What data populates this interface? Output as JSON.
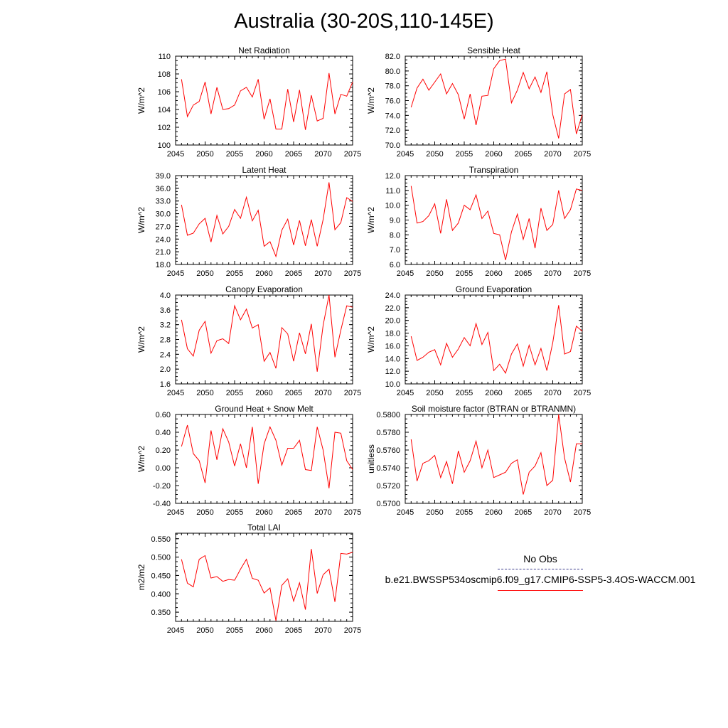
{
  "title": "Australia (30-20S,110-145E)",
  "legend": {
    "obs_label": "No Obs",
    "obs_color": "#3c3c8c",
    "run_label": "b.e21.BWSSP534oscmip6.f09_g17.CMIP6-SSP5-3.4OS-WACCM.001",
    "run_color": "#ff0000"
  },
  "chart_data": [
    {
      "type": "line",
      "title": "Net Radiation",
      "ylabel": "W/m^2",
      "xlim": [
        2045,
        2075
      ],
      "ylim": [
        100,
        110
      ],
      "xticks": [
        "2045",
        "2050",
        "2055",
        "2060",
        "2065",
        "2070",
        "2075"
      ],
      "yticks": [
        "100",
        "102",
        "104",
        "106",
        "108",
        "110"
      ],
      "x": [
        2046,
        2047,
        2048,
        2049,
        2050,
        2051,
        2052,
        2053,
        2054,
        2055,
        2056,
        2057,
        2058,
        2059,
        2060,
        2061,
        2062,
        2063,
        2064,
        2065,
        2066,
        2067,
        2068,
        2069,
        2070,
        2071,
        2072,
        2073,
        2074,
        2075
      ],
      "series": [
        {
          "values": [
            107.4,
            103.2,
            104.5,
            104.9,
            107.1,
            103.5,
            106.5,
            104.0,
            104.1,
            104.5,
            106.1,
            106.5,
            105.4,
            107.4,
            102.9,
            105.2,
            101.8,
            101.8,
            106.3,
            102.6,
            106.2,
            101.7,
            105.6,
            102.7,
            103.0,
            108.1,
            103.5,
            105.7,
            105.5,
            107.1
          ]
        }
      ]
    },
    {
      "type": "line",
      "title": "Sensible Heat",
      "ylabel": "W/m^2",
      "xlim": [
        2045,
        2075
      ],
      "ylim": [
        70.0,
        82.0
      ],
      "xticks": [
        "2045",
        "2050",
        "2055",
        "2060",
        "2065",
        "2070",
        "2075"
      ],
      "yticks": [
        "70.0",
        "72.0",
        "74.0",
        "76.0",
        "78.0",
        "80.0",
        "82.0"
      ],
      "x": [
        2046,
        2047,
        2048,
        2049,
        2050,
        2051,
        2052,
        2053,
        2054,
        2055,
        2056,
        2057,
        2058,
        2059,
        2060,
        2061,
        2062,
        2063,
        2064,
        2065,
        2066,
        2067,
        2068,
        2069,
        2070,
        2071,
        2072,
        2073,
        2074,
        2075
      ],
      "series": [
        {
          "values": [
            75.1,
            77.7,
            78.9,
            77.4,
            78.5,
            79.6,
            76.9,
            78.3,
            76.8,
            73.5,
            76.9,
            72.7,
            76.6,
            76.7,
            80.3,
            81.4,
            81.6,
            75.7,
            77.4,
            79.8,
            77.6,
            79.2,
            77.1,
            79.9,
            74.1,
            70.9,
            76.9,
            77.5,
            71.5,
            74.1
          ]
        }
      ]
    },
    {
      "type": "line",
      "title": "Latent Heat",
      "ylabel": "W/m^2",
      "xlim": [
        2045,
        2075
      ],
      "ylim": [
        18.0,
        39.0
      ],
      "xticks": [
        "2045",
        "2050",
        "2055",
        "2060",
        "2065",
        "2070",
        "2075"
      ],
      "yticks": [
        "18.0",
        "21.0",
        "24.0",
        "27.0",
        "30.0",
        "33.0",
        "36.0",
        "39.0"
      ],
      "x": [
        2046,
        2047,
        2048,
        2049,
        2050,
        2051,
        2052,
        2053,
        2054,
        2055,
        2056,
        2057,
        2058,
        2059,
        2060,
        2061,
        2062,
        2063,
        2064,
        2065,
        2066,
        2067,
        2068,
        2069,
        2070,
        2071,
        2072,
        2073,
        2074,
        2075
      ],
      "series": [
        {
          "values": [
            32.1,
            24.9,
            25.4,
            27.6,
            28.9,
            23.3,
            29.6,
            25.2,
            27.0,
            31.0,
            28.9,
            33.9,
            28.3,
            30.8,
            22.3,
            23.4,
            19.9,
            26.1,
            28.7,
            22.6,
            28.4,
            22.4,
            28.6,
            22.3,
            28.6,
            37.4,
            26.2,
            27.9,
            33.8,
            32.9
          ]
        }
      ]
    },
    {
      "type": "line",
      "title": "Transpiration",
      "ylabel": "W/m^2",
      "xlim": [
        2045,
        2075
      ],
      "ylim": [
        6.0,
        12.0
      ],
      "xticks": [
        "2045",
        "2050",
        "2055",
        "2060",
        "2065",
        "2070",
        "2075"
      ],
      "yticks": [
        "6.0",
        "7.0",
        "8.0",
        "9.0",
        "10.0",
        "11.0",
        "12.0"
      ],
      "x": [
        2046,
        2047,
        2048,
        2049,
        2050,
        2051,
        2052,
        2053,
        2054,
        2055,
        2056,
        2057,
        2058,
        2059,
        2060,
        2061,
        2062,
        2063,
        2064,
        2065,
        2066,
        2067,
        2068,
        2069,
        2070,
        2071,
        2072,
        2073,
        2074,
        2075
      ],
      "series": [
        {
          "values": [
            11.3,
            8.8,
            8.9,
            9.3,
            10.1,
            8.1,
            10.4,
            8.3,
            8.8,
            10.0,
            9.7,
            10.7,
            9.1,
            9.6,
            8.1,
            8.0,
            6.3,
            8.2,
            9.4,
            7.7,
            9.1,
            7.1,
            9.8,
            8.3,
            8.7,
            11.0,
            9.1,
            9.7,
            11.1,
            11.0
          ]
        }
      ]
    },
    {
      "type": "line",
      "title": "Canopy Evaporation",
      "ylabel": "W/m^2",
      "xlim": [
        2045,
        2075
      ],
      "ylim": [
        1.6,
        4.0
      ],
      "xticks": [
        "2045",
        "2050",
        "2055",
        "2060",
        "2065",
        "2070",
        "2075"
      ],
      "yticks": [
        "1.6",
        "2.0",
        "2.4",
        "2.8",
        "3.2",
        "3.6",
        "4.0"
      ],
      "x": [
        2046,
        2047,
        2048,
        2049,
        2050,
        2051,
        2052,
        2053,
        2054,
        2055,
        2056,
        2057,
        2058,
        2059,
        2060,
        2061,
        2062,
        2063,
        2064,
        2065,
        2066,
        2067,
        2068,
        2069,
        2070,
        2071,
        2072,
        2073,
        2074,
        2075
      ],
      "series": [
        {
          "values": [
            3.33,
            2.55,
            2.35,
            3.05,
            3.29,
            2.43,
            2.77,
            2.82,
            2.69,
            3.71,
            3.33,
            3.62,
            3.11,
            3.2,
            2.21,
            2.45,
            2.02,
            3.12,
            2.95,
            2.21,
            2.98,
            2.41,
            3.22,
            1.93,
            3.18,
            4.0,
            2.32,
            3.05,
            3.71,
            3.67
          ]
        }
      ]
    },
    {
      "type": "line",
      "title": "Ground Evaporation",
      "ylabel": "W/m^2",
      "xlim": [
        2045,
        2075
      ],
      "ylim": [
        10.0,
        24.0
      ],
      "xticks": [
        "2045",
        "2050",
        "2055",
        "2060",
        "2065",
        "2070",
        "2075"
      ],
      "yticks": [
        "10.0",
        "12.0",
        "14.0",
        "16.0",
        "18.0",
        "20.0",
        "22.0",
        "24.0"
      ],
      "x": [
        2046,
        2047,
        2048,
        2049,
        2050,
        2051,
        2052,
        2053,
        2054,
        2055,
        2056,
        2057,
        2058,
        2059,
        2060,
        2061,
        2062,
        2063,
        2064,
        2065,
        2066,
        2067,
        2068,
        2069,
        2070,
        2071,
        2072,
        2073,
        2074,
        2075
      ],
      "series": [
        {
          "values": [
            17.5,
            13.7,
            14.2,
            15.0,
            15.4,
            13.0,
            16.4,
            14.2,
            15.5,
            17.3,
            16.0,
            19.5,
            16.2,
            18.1,
            12.1,
            13.1,
            11.7,
            14.7,
            16.3,
            12.8,
            16.1,
            13.0,
            15.6,
            12.1,
            16.5,
            22.4,
            14.7,
            15.1,
            19.1,
            18.3
          ]
        }
      ]
    },
    {
      "type": "line",
      "title": "Ground Heat + Snow Melt",
      "ylabel": "W/m^2",
      "xlim": [
        2045,
        2075
      ],
      "ylim": [
        -0.4,
        0.6
      ],
      "xticks": [
        "2045",
        "2050",
        "2055",
        "2060",
        "2065",
        "2070",
        "2075"
      ],
      "yticks": [
        "-0.40",
        "-0.20",
        "0.00",
        "0.20",
        "0.40",
        "0.60"
      ],
      "x": [
        2046,
        2047,
        2048,
        2049,
        2050,
        2051,
        2052,
        2053,
        2054,
        2055,
        2056,
        2057,
        2058,
        2059,
        2060,
        2061,
        2062,
        2063,
        2064,
        2065,
        2066,
        2067,
        2068,
        2069,
        2070,
        2071,
        2072,
        2073,
        2074,
        2075
      ],
      "series": [
        {
          "values": [
            0.24,
            0.48,
            0.16,
            0.08,
            -0.17,
            0.42,
            0.09,
            0.44,
            0.29,
            0.02,
            0.27,
            0.0,
            0.46,
            -0.18,
            0.27,
            0.46,
            0.31,
            0.03,
            0.22,
            0.22,
            0.31,
            -0.02,
            -0.03,
            0.46,
            0.2,
            -0.23,
            0.4,
            0.39,
            0.08,
            -0.02
          ]
        }
      ]
    },
    {
      "type": "line",
      "title": "Soil moisture factor (BTRAN or BTRANMN)",
      "ylabel": "unitless",
      "xlim": [
        2045,
        2075
      ],
      "ylim": [
        0.57,
        0.58
      ],
      "xticks": [
        "2045",
        "2050",
        "2055",
        "2060",
        "2065",
        "2070",
        "2075"
      ],
      "yticks": [
        "0.5700",
        "0.5720",
        "0.5740",
        "0.5760",
        "0.5780",
        "0.5800"
      ],
      "x": [
        2046,
        2047,
        2048,
        2049,
        2050,
        2051,
        2052,
        2053,
        2054,
        2055,
        2056,
        2057,
        2058,
        2059,
        2060,
        2061,
        2062,
        2063,
        2064,
        2065,
        2066,
        2067,
        2068,
        2069,
        2070,
        2071,
        2072,
        2073,
        2074,
        2075
      ],
      "series": [
        {
          "values": [
            0.5772,
            0.5725,
            0.5745,
            0.5748,
            0.5754,
            0.5729,
            0.5747,
            0.5722,
            0.5759,
            0.5735,
            0.5748,
            0.577,
            0.574,
            0.576,
            0.5729,
            0.5732,
            0.5735,
            0.5745,
            0.5749,
            0.571,
            0.5735,
            0.5742,
            0.5757,
            0.572,
            0.5726,
            0.58,
            0.5751,
            0.5724,
            0.5767,
            0.5767
          ]
        }
      ]
    },
    {
      "type": "line",
      "title": "Total LAI",
      "ylabel": "m2/m2",
      "xlim": [
        2045,
        2075
      ],
      "ylim": [
        0.325,
        0.565
      ],
      "xticks": [
        "2045",
        "2050",
        "2055",
        "2060",
        "2065",
        "2070",
        "2075"
      ],
      "yticks": [
        "0.350",
        "0.400",
        "0.450",
        "0.500",
        "0.550"
      ],
      "ytick_values": [
        0.35,
        0.4,
        0.45,
        0.5,
        0.55
      ],
      "x": [
        2046,
        2047,
        2048,
        2049,
        2050,
        2051,
        2052,
        2053,
        2054,
        2055,
        2056,
        2057,
        2058,
        2059,
        2060,
        2061,
        2062,
        2063,
        2064,
        2065,
        2066,
        2067,
        2068,
        2069,
        2070,
        2071,
        2072,
        2073,
        2074,
        2075
      ],
      "series": [
        {
          "values": [
            0.494,
            0.429,
            0.419,
            0.494,
            0.504,
            0.443,
            0.447,
            0.434,
            0.439,
            0.437,
            0.467,
            0.494,
            0.442,
            0.437,
            0.402,
            0.416,
            0.327,
            0.423,
            0.441,
            0.38,
            0.43,
            0.357,
            0.522,
            0.401,
            0.452,
            0.467,
            0.378,
            0.51,
            0.508,
            0.513
          ]
        }
      ]
    }
  ]
}
